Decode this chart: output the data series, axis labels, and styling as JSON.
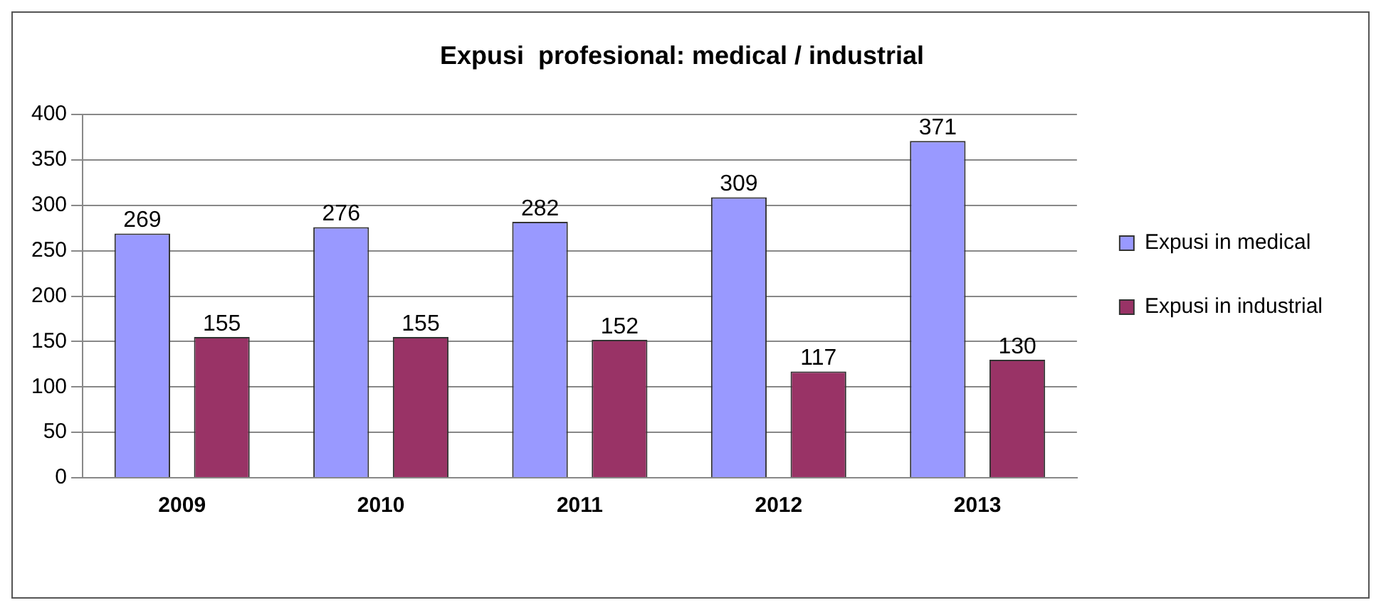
{
  "chart_data": {
    "type": "bar",
    "title": "Expusi  profesional: medical / industrial",
    "categories": [
      "2009",
      "2010",
      "2011",
      "2012",
      "2013"
    ],
    "series": [
      {
        "name": "Expusi in medical",
        "color": "#9999ff",
        "values": [
          269,
          276,
          282,
          309,
          371
        ]
      },
      {
        "name": "Expusi in industrial",
        "color": "#993366",
        "values": [
          155,
          155,
          152,
          117,
          130
        ]
      }
    ],
    "ylim": [
      0,
      400
    ],
    "yticks": [
      0,
      50,
      100,
      150,
      200,
      250,
      300,
      350,
      400
    ],
    "grid": "y",
    "legend": "right",
    "data_labels": true
  }
}
